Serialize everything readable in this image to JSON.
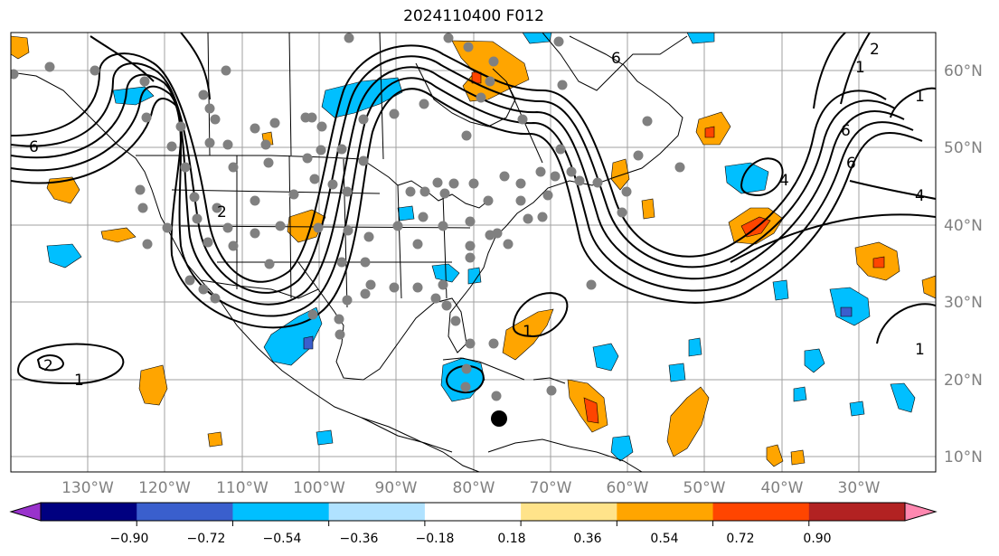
{
  "title": "2024110400 F012",
  "latitude_labels": [
    "10°N",
    "20°N",
    "30°N",
    "40°N",
    "50°N",
    "60°N"
  ],
  "longitude_labels": [
    "130°W",
    "120°W",
    "110°W",
    "100°W",
    "90°W",
    "80°W",
    "70°W",
    "60°W",
    "50°W",
    "40°W",
    "30°W"
  ],
  "colorbar": {
    "tick_labels": [
      "−0.90",
      "−0.72",
      "−0.54",
      "−0.36",
      "−0.18",
      "0.18",
      "0.36",
      "0.54",
      "0.72",
      "0.90"
    ],
    "colors": [
      "#9932cc",
      "#000080",
      "#3a5fcd",
      "#00bfff",
      "#b0e2ff",
      "#ffffff",
      "#ffe38a",
      "#ffa500",
      "#ff4500",
      "#b22222",
      "#ff88b0"
    ]
  },
  "contour_labels": [
    "6",
    "2",
    "1",
    "1",
    "6",
    "2",
    "1",
    "4",
    "1",
    "6",
    "4",
    "6",
    "2",
    "1"
  ],
  "fill_colors": {
    "positive": "#ffa500",
    "positive_strong": "#ff4500",
    "negative": "#00bfff",
    "negative_strong": "#3a5fcd"
  },
  "station_color": "#808080",
  "marker_color": "#000000"
}
